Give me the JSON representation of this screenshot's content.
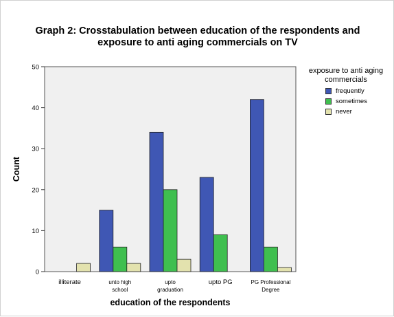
{
  "chart_data": {
    "type": "bar",
    "title": "Graph 2: Crosstabulation between education of the respondents and\nexposure to anti aging commercials on TV",
    "xlabel": "education of the respondents",
    "ylabel": "Count",
    "ylim": [
      0,
      50
    ],
    "yticks": [
      0,
      10,
      20,
      30,
      40,
      50
    ],
    "categories": [
      [
        "illiterate"
      ],
      [
        "unto high",
        "school"
      ],
      [
        "upto",
        "graduation"
      ],
      [
        "upto PG"
      ],
      [
        "PG Professional",
        "Degree"
      ]
    ],
    "series": [
      {
        "name": "frequently",
        "color": "#3f57b4",
        "values": [
          0,
          15,
          34,
          23,
          42
        ]
      },
      {
        "name": "sometimes",
        "color": "#3fbf4f",
        "values": [
          0,
          6,
          20,
          9,
          6
        ]
      },
      {
        "name": "never",
        "color": "#e3e2ae",
        "values": [
          2,
          2,
          3,
          0,
          1
        ]
      }
    ],
    "legend": {
      "title": "exposure to anti aging\ncommercials",
      "position": "right"
    },
    "plot_background": "#f0f0f0",
    "grid": false
  }
}
